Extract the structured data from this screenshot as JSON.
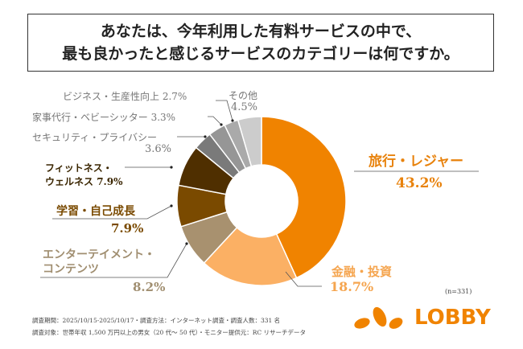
{
  "title": {
    "line1": "あなたは、今年利用した有料サービスの中で、",
    "line2": "最も良かったと感じるサービスのカテゴリーは何ですか。"
  },
  "chart_data": {
    "type": "pie",
    "donut": true,
    "start": "top, clockwise",
    "series": [
      {
        "name": "旅行・レジャー",
        "value": 43.2,
        "label": "43.2%",
        "color": "#f08300"
      },
      {
        "name": "金融・投資",
        "value": 18.7,
        "label": "18.7%",
        "color": "#fbb064"
      },
      {
        "name": "エンターテイメント・コンテンツ",
        "value": 8.2,
        "label": "8.2%",
        "color": "#a8916f"
      },
      {
        "name": "学習・自己成長",
        "value": 7.9,
        "label": "7.9%",
        "color": "#7a4a00"
      },
      {
        "name": "フィットネス・ウェルネス",
        "value": 7.9,
        "label": "7.9%",
        "color": "#4f2f00"
      },
      {
        "name": "セキュリティ・プライバシー",
        "value": 3.6,
        "label": "3.6%",
        "color": "#7a7a7a"
      },
      {
        "name": "家事代行・ベビーシッター",
        "value": 3.3,
        "label": "3.3%",
        "color": "#969696"
      },
      {
        "name": "ビジネス・生産性向上",
        "value": 2.7,
        "label": "2.7%",
        "color": "#aaaaaa"
      },
      {
        "name": "その他",
        "value": 4.5,
        "label": "4.5%",
        "color": "#cccccc"
      }
    ],
    "sample": "(n=331)"
  },
  "labels": {
    "travel": "旅行・レジャー",
    "finance": "金融・投資",
    "ent1": "エンターテイメント・",
    "ent2": "コンテンツ",
    "learn": "学習・自己成長",
    "fit1": "フィットネス・",
    "fit2": "ウェルネス",
    "sec": "セキュリティ・プライバシー",
    "house": "家事代行・ベビーシッター",
    "biz": "ビジネス・生産性向上",
    "other": "その他"
  },
  "notes": {
    "line1": "調査期間：2025/10/15-2025/10/17・調査方法：インターネット調査・調査人数：331 名",
    "line2": "調査対象：世帯年収 1,500 万円以上の男女（20 代～ 50 代）・モニター提供元：RC リサーチデータ"
  },
  "logo": {
    "text": "LOBBY",
    "color": "#f08300"
  }
}
